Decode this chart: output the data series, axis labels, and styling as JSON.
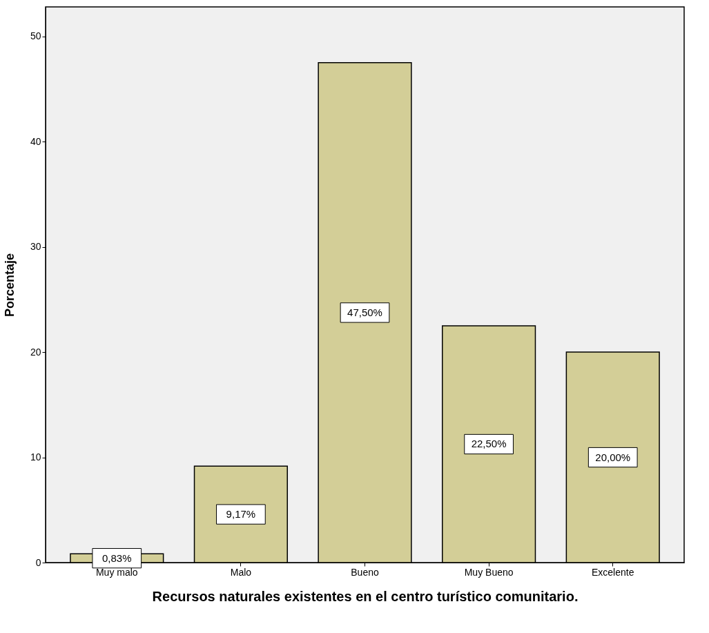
{
  "chart_data": {
    "type": "bar",
    "xlabel": "Recursos naturales existentes en el centro turístico comunitario.",
    "ylabel": "Porcentaje",
    "categories": [
      "Muy malo",
      "Malo",
      "Bueno",
      "Muy Bueno",
      "Excelente"
    ],
    "values": [
      0.83,
      9.17,
      47.5,
      22.5,
      20.0
    ],
    "value_labels": [
      "0,83%",
      "9,17%",
      "47,50%",
      "22,50%",
      "20,00%"
    ],
    "color": "#d3ce97",
    "ylim": [
      0,
      52.8
    ],
    "yticks": [
      0,
      10,
      20,
      30,
      40,
      50
    ],
    "grid": false
  }
}
